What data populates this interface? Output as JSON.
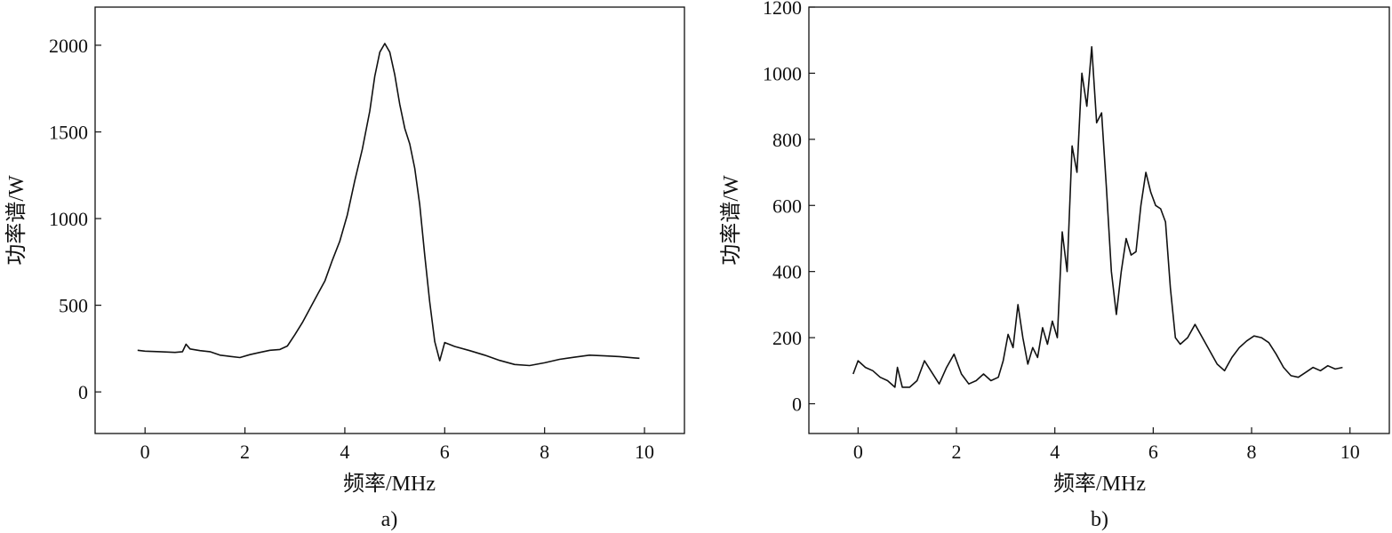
{
  "chart_data": [
    {
      "type": "line",
      "panel_label": "a)",
      "xlabel": "频率/MHz",
      "ylabel": "功率谱/W",
      "xlim": [
        -1,
        10.8
      ],
      "ylim": [
        -240,
        2220
      ],
      "xticks": [
        0,
        2,
        4,
        6,
        8,
        10
      ],
      "yticks": [
        0,
        500,
        1000,
        1500,
        2000
      ],
      "xtick_labels": [
        "0",
        "2",
        "4",
        "6",
        "8",
        "10"
      ],
      "ytick_labels": [
        "0",
        "500",
        "1000",
        "1500",
        "2000"
      ],
      "grid": false,
      "line_color": "#111111",
      "series": [
        {
          "x": [
            -0.15,
            0.0,
            0.3,
            0.6,
            0.75,
            0.82,
            0.9,
            1.1,
            1.3,
            1.5,
            1.7,
            1.9,
            2.1,
            2.3,
            2.5,
            2.7,
            2.85,
            3.0,
            3.15,
            3.3,
            3.45,
            3.6,
            3.75,
            3.9,
            4.05,
            4.2,
            4.35,
            4.5,
            4.6,
            4.7,
            4.8,
            4.9,
            5.0,
            5.1,
            5.2,
            5.3,
            5.4,
            5.5,
            5.6,
            5.7,
            5.8,
            5.9,
            6.0,
            6.2,
            6.5,
            6.8,
            7.1,
            7.4,
            7.7,
            8.0,
            8.3,
            8.6,
            8.9,
            9.2,
            9.5,
            9.8,
            9.9
          ],
          "y": [
            240,
            235,
            232,
            228,
            232,
            275,
            248,
            238,
            232,
            212,
            205,
            198,
            215,
            228,
            240,
            245,
            265,
            330,
            400,
            480,
            560,
            640,
            760,
            870,
            1020,
            1220,
            1400,
            1620,
            1820,
            1960,
            2010,
            1960,
            1830,
            1660,
            1520,
            1430,
            1290,
            1080,
            790,
            520,
            290,
            180,
            285,
            262,
            238,
            212,
            182,
            158,
            152,
            168,
            188,
            200,
            212,
            208,
            204,
            196,
            194
          ]
        }
      ]
    },
    {
      "type": "line",
      "panel_label": "b)",
      "xlabel": "频率/MHz",
      "ylabel": "功率谱/W",
      "xlim": [
        -1,
        10.8
      ],
      "ylim": [
        -90,
        1200
      ],
      "xticks": [
        0,
        2,
        4,
        6,
        8,
        10
      ],
      "yticks": [
        0,
        200,
        400,
        600,
        800,
        1000,
        1200
      ],
      "xtick_labels": [
        "0",
        "2",
        "4",
        "6",
        "8",
        "10"
      ],
      "ytick_labels": [
        "0",
        "200",
        "400",
        "600",
        "800",
        "1000",
        "1200"
      ],
      "grid": false,
      "line_color": "#111111",
      "series": [
        {
          "x": [
            -0.1,
            0.0,
            0.15,
            0.3,
            0.45,
            0.6,
            0.75,
            0.8,
            0.9,
            1.05,
            1.2,
            1.35,
            1.5,
            1.65,
            1.8,
            1.95,
            2.1,
            2.25,
            2.4,
            2.55,
            2.7,
            2.85,
            2.95,
            3.05,
            3.15,
            3.25,
            3.35,
            3.45,
            3.55,
            3.65,
            3.75,
            3.85,
            3.95,
            4.05,
            4.15,
            4.25,
            4.35,
            4.45,
            4.55,
            4.65,
            4.75,
            4.85,
            4.95,
            5.05,
            5.15,
            5.25,
            5.35,
            5.45,
            5.55,
            5.65,
            5.75,
            5.85,
            5.95,
            6.05,
            6.15,
            6.25,
            6.35,
            6.45,
            6.55,
            6.7,
            6.85,
            7.0,
            7.15,
            7.3,
            7.45,
            7.6,
            7.75,
            7.9,
            8.05,
            8.2,
            8.35,
            8.5,
            8.65,
            8.8,
            8.95,
            9.1,
            9.25,
            9.4,
            9.55,
            9.7,
            9.85
          ],
          "y": [
            90,
            130,
            110,
            100,
            80,
            70,
            50,
            110,
            50,
            50,
            70,
            130,
            95,
            60,
            110,
            150,
            90,
            60,
            70,
            90,
            70,
            80,
            130,
            210,
            170,
            300,
            200,
            120,
            170,
            140,
            230,
            180,
            250,
            200,
            520,
            400,
            780,
            700,
            1000,
            900,
            1080,
            850,
            880,
            650,
            400,
            270,
            400,
            500,
            450,
            460,
            600,
            700,
            640,
            600,
            590,
            550,
            350,
            200,
            180,
            200,
            240,
            200,
            160,
            120,
            100,
            140,
            170,
            190,
            205,
            200,
            185,
            150,
            110,
            85,
            80,
            95,
            110,
            100,
            115,
            105,
            110
          ]
        }
      ]
    }
  ]
}
